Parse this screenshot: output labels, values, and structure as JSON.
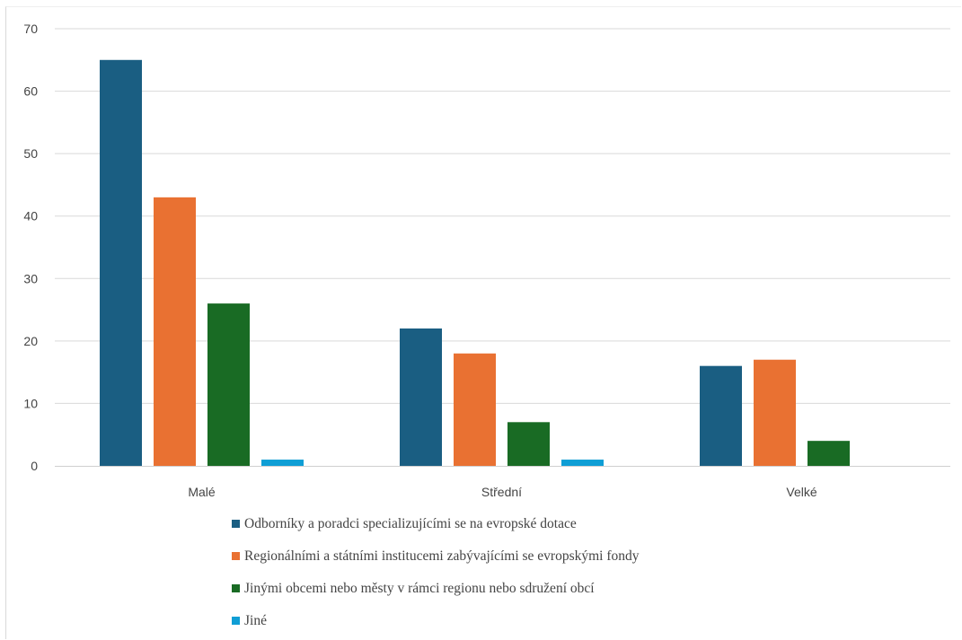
{
  "chart_data": {
    "type": "bar",
    "title": "",
    "xlabel": "",
    "ylabel": "",
    "categories": [
      "Malé",
      "Střední",
      "Velké"
    ],
    "series": [
      {
        "name": "Odborníky a poradci specializujícími se na evropské dotace",
        "color": "#1a5e82",
        "values": [
          65,
          22,
          16
        ]
      },
      {
        "name": "Regionálními a státními institucemi zabývajícími se evropskými fondy",
        "color": "#e97132",
        "values": [
          43,
          18,
          17
        ]
      },
      {
        "name": "Jinými obcemi nebo městy v rámci regionu nebo sdružení obcí",
        "color": "#196b24",
        "values": [
          26,
          7,
          4
        ]
      },
      {
        "name": "Jiné",
        "color": "#0f9ed5",
        "values": [
          1,
          1,
          0
        ]
      }
    ],
    "ylim": [
      0,
      70
    ],
    "yticks": [
      0,
      10,
      20,
      30,
      40,
      50,
      60,
      70
    ],
    "grid": true,
    "legend_position": "bottom"
  }
}
